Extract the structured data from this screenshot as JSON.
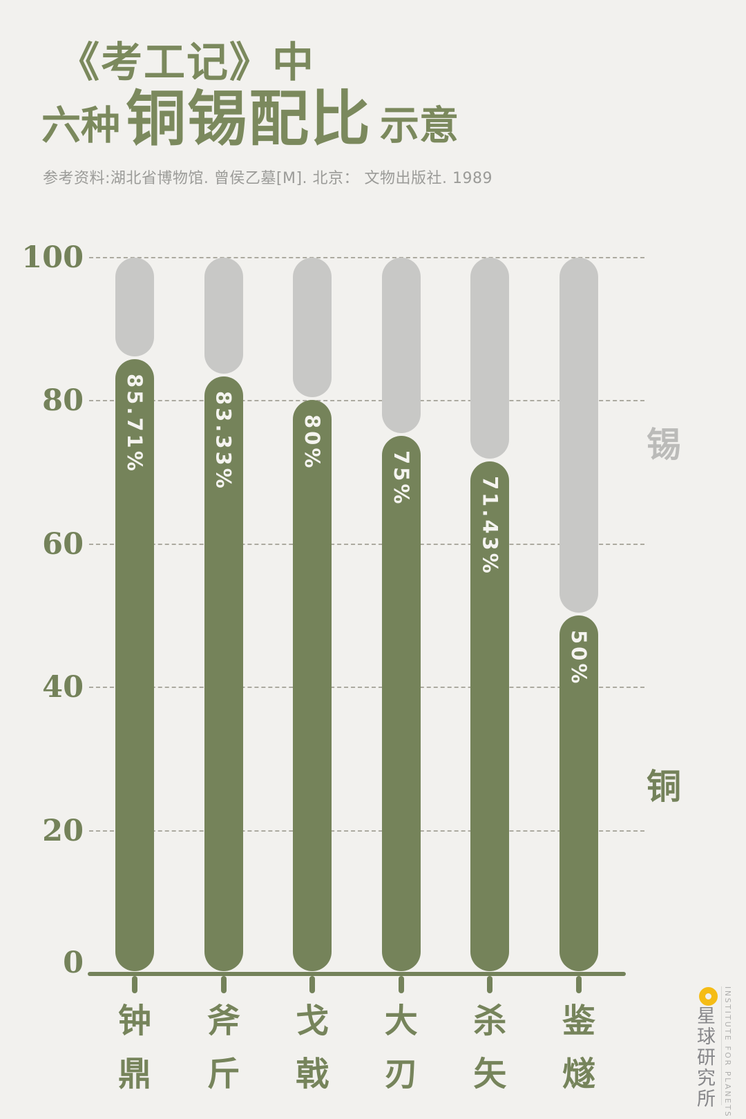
{
  "title": {
    "line1": "《考工记》中",
    "line2_prefix": "六种",
    "line2_emphasis": "铜锡配比",
    "line2_suffix": "示意"
  },
  "subtitle": "参考资料:湖北省博物馆. 曾侯乙墓[M]. 北京： 文物出版社. 1989",
  "chart_data": {
    "type": "bar",
    "stacked": true,
    "title": "《考工记》中六种铜锡配比示意",
    "categories": [
      "钟鼎",
      "斧斤",
      "戈戟",
      "大刃",
      "杀矢",
      "鉴燧"
    ],
    "series": [
      {
        "name": "铜",
        "values": [
          85.71,
          83.33,
          80,
          75,
          71.43,
          50
        ],
        "color": "#75835A"
      },
      {
        "name": "锡",
        "values": [
          14.29,
          16.67,
          20,
          25,
          28.57,
          50
        ],
        "color": "#C8C8C6"
      }
    ],
    "value_labels": [
      "85.71%",
      "83.33%",
      "80%",
      "75%",
      "71.43%",
      "50%"
    ],
    "ylim": [
      0,
      100
    ],
    "yticks": [
      0,
      20,
      40,
      60,
      80,
      100
    ],
    "grid": "horizontal-dashed",
    "legend": {
      "tin_label": "锡",
      "copper_label": "铜"
    }
  },
  "colors": {
    "background": "#F2F1EE",
    "copper_green": "#75835A",
    "tin_gray": "#C8C8C6",
    "title_green": "#7B895D",
    "subtitle_gray": "#9B9B98",
    "logo_yellow": "#F5BC15"
  },
  "logo": {
    "chinese": "星球研究所",
    "english": "INSTITUTE FOR PLANETS"
  }
}
